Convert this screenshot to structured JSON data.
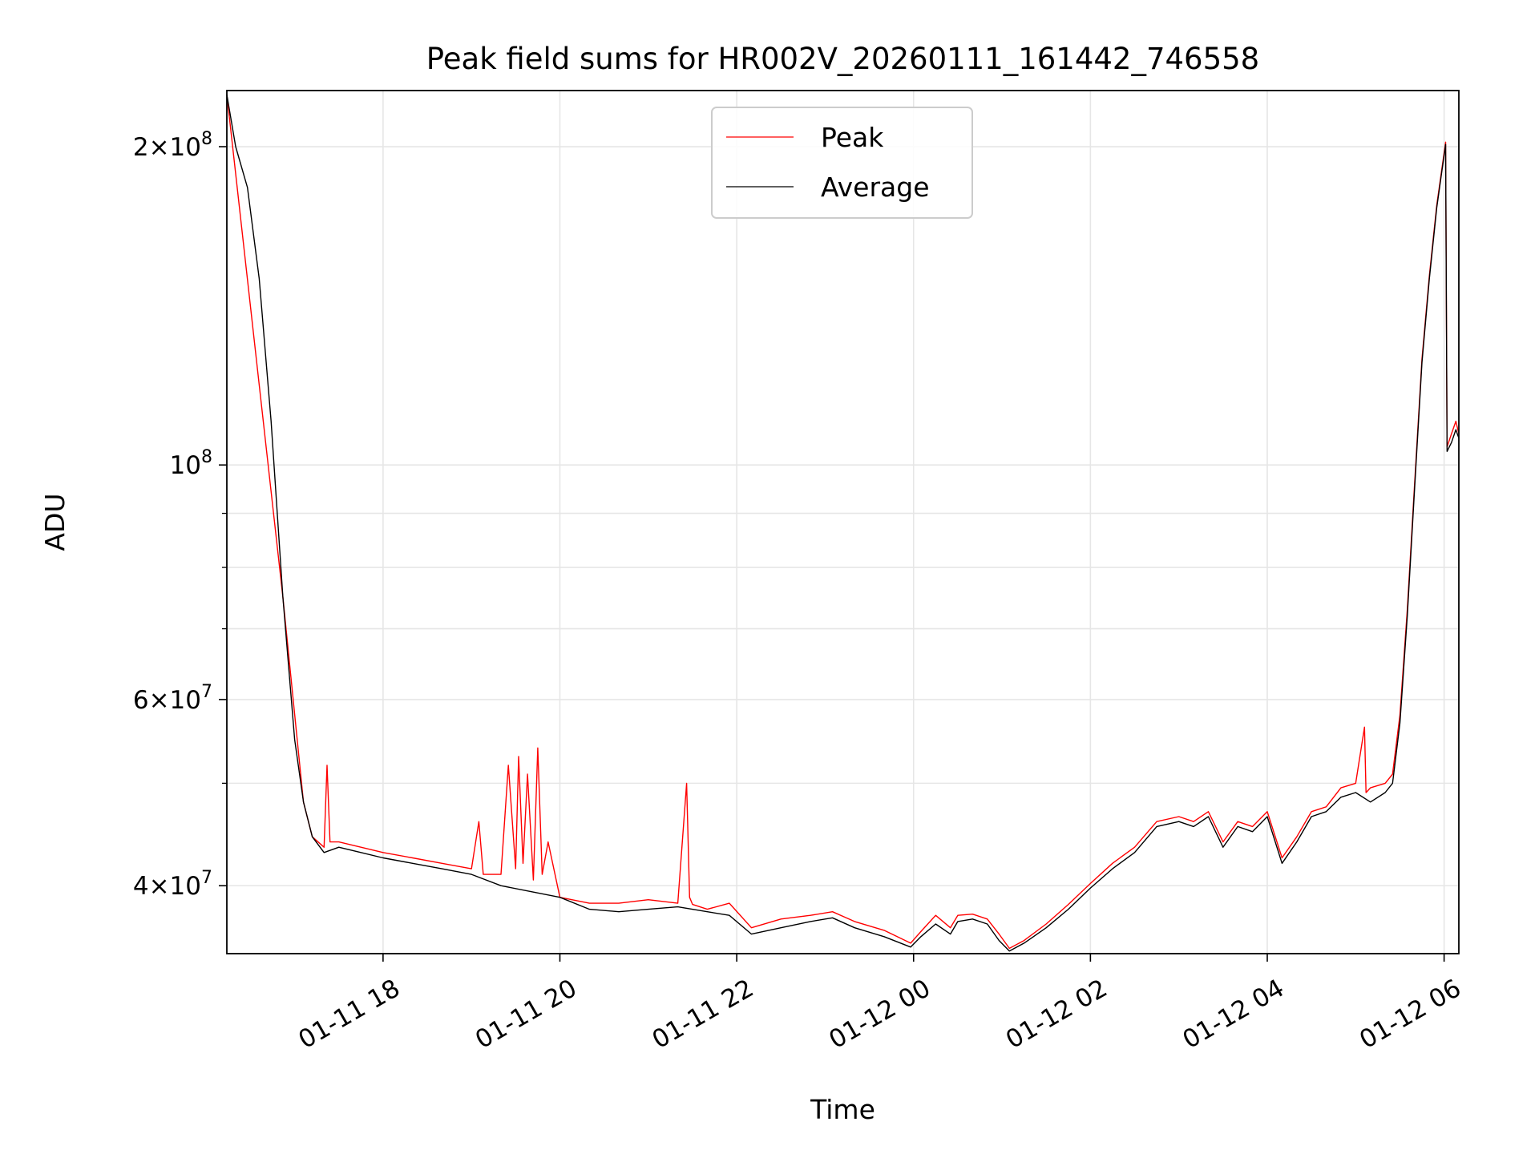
{
  "chart_data": {
    "type": "line",
    "title": "Peak field sums for HR002V_20260111_161442_746558",
    "xlabel": "Time",
    "ylabel": "ADU",
    "y_scale": "log",
    "ylim": [
      34500000,
      226000000
    ],
    "xlim": [
      "2026-01-11 16:14",
      "2026-01-12 06:10"
    ],
    "grid": true,
    "legend": {
      "placement": "top-center",
      "entries": [
        "Peak",
        "Average"
      ]
    },
    "x_ticks": [
      {
        "t": "2026-01-11 18:00",
        "label": "01-11 18"
      },
      {
        "t": "2026-01-11 20:00",
        "label": "01-11 20"
      },
      {
        "t": "2026-01-11 22:00",
        "label": "01-11 22"
      },
      {
        "t": "2026-01-12 00:00",
        "label": "01-12 00"
      },
      {
        "t": "2026-01-12 02:00",
        "label": "01-12 02"
      },
      {
        "t": "2026-01-12 04:00",
        "label": "01-12 04"
      },
      {
        "t": "2026-01-12 06:00",
        "label": "01-12 06"
      }
    ],
    "y_ticks_major": [
      {
        "v": 200000000,
        "base": "2×10",
        "exp": "8"
      },
      {
        "v": 100000000,
        "base": "10",
        "exp": "8"
      },
      {
        "v": 60000000,
        "base": "6×10",
        "exp": "7"
      },
      {
        "v": 40000000,
        "base": "4×10",
        "exp": "7"
      }
    ],
    "y_ticks_minor": [
      90000000,
      80000000,
      70000000,
      50000000
    ],
    "series": [
      {
        "name": "Average",
        "color": "#000000",
        "t": [
          "2026-01-11 16:14",
          "2026-01-11 16:20",
          "2026-01-11 16:28",
          "2026-01-11 16:36",
          "2026-01-11 16:44",
          "2026-01-11 16:52",
          "2026-01-11 17:00",
          "2026-01-11 17:06",
          "2026-01-11 17:12",
          "2026-01-11 17:20",
          "2026-01-11 17:30",
          "2026-01-11 17:45",
          "2026-01-11 18:00",
          "2026-01-11 18:20",
          "2026-01-11 18:40",
          "2026-01-11 19:00",
          "2026-01-11 19:20",
          "2026-01-11 19:40",
          "2026-01-11 20:00",
          "2026-01-11 20:20",
          "2026-01-11 20:40",
          "2026-01-11 21:00",
          "2026-01-11 21:20",
          "2026-01-11 21:40",
          "2026-01-11 21:55",
          "2026-01-11 22:10",
          "2026-01-11 22:30",
          "2026-01-11 22:50",
          "2026-01-11 23:05",
          "2026-01-11 23:20",
          "2026-01-11 23:40",
          "2026-01-11 23:58",
          "2026-01-12 00:05",
          "2026-01-12 00:15",
          "2026-01-12 00:25",
          "2026-01-12 00:30",
          "2026-01-12 00:40",
          "2026-01-12 00:50",
          "2026-01-12 00:58",
          "2026-01-12 01:05",
          "2026-01-12 01:15",
          "2026-01-12 01:30",
          "2026-01-12 01:45",
          "2026-01-12 02:00",
          "2026-01-12 02:15",
          "2026-01-12 02:30",
          "2026-01-12 02:45",
          "2026-01-12 03:00",
          "2026-01-12 03:10",
          "2026-01-12 03:20",
          "2026-01-12 03:30",
          "2026-01-12 03:40",
          "2026-01-12 03:50",
          "2026-01-12 04:00",
          "2026-01-12 04:10",
          "2026-01-12 04:20",
          "2026-01-12 04:30",
          "2026-01-12 04:40",
          "2026-01-12 04:50",
          "2026-01-12 05:00",
          "2026-01-12 05:10",
          "2026-01-12 05:20",
          "2026-01-12 05:25",
          "2026-01-12 05:30",
          "2026-01-12 05:35",
          "2026-01-12 05:40",
          "2026-01-12 05:45",
          "2026-01-12 05:50",
          "2026-01-12 05:55",
          "2026-01-12 06:01",
          "2026-01-12 06:02",
          "2026-01-12 06:05",
          "2026-01-12 06:08",
          "2026-01-12 06:10"
        ],
        "values": [
          224000000,
          200000000,
          183000000,
          150000000,
          110000000,
          75000000,
          55000000,
          48000000,
          44500000,
          43000000,
          43500000,
          43000000,
          42500000,
          42000000,
          41500000,
          41000000,
          40000000,
          39500000,
          39000000,
          38000000,
          37800000,
          38000000,
          38200000,
          37800000,
          37500000,
          36000000,
          36500000,
          37000000,
          37300000,
          36500000,
          35800000,
          35000000,
          35800000,
          36800000,
          36000000,
          37000000,
          37200000,
          36800000,
          35500000,
          34700000,
          35300000,
          36500000,
          38000000,
          39800000,
          41500000,
          43000000,
          45500000,
          46000000,
          45500000,
          46500000,
          43500000,
          45500000,
          45000000,
          46500000,
          42000000,
          44000000,
          46500000,
          47000000,
          48500000,
          49000000,
          48000000,
          49000000,
          50000000,
          57000000,
          72000000,
          95000000,
          125000000,
          150000000,
          175000000,
          201000000,
          103000000,
          105000000,
          108000000,
          106000000
        ]
      },
      {
        "name": "Peak",
        "color": "#ff0000",
        "t": [
          "2026-01-11 16:14",
          "2026-01-11 16:52",
          "2026-01-11 17:06",
          "2026-01-11 17:12",
          "2026-01-11 17:20",
          "2026-01-11 17:22",
          "2026-01-11 17:24",
          "2026-01-11 17:30",
          "2026-01-11 17:45",
          "2026-01-11 18:00",
          "2026-01-11 18:20",
          "2026-01-11 18:40",
          "2026-01-11 19:00",
          "2026-01-11 19:05",
          "2026-01-11 19:08",
          "2026-01-11 19:20",
          "2026-01-11 19:25",
          "2026-01-11 19:30",
          "2026-01-11 19:32",
          "2026-01-11 19:35",
          "2026-01-11 19:38",
          "2026-01-11 19:42",
          "2026-01-11 19:45",
          "2026-01-11 19:48",
          "2026-01-11 19:52",
          "2026-01-11 20:00",
          "2026-01-11 20:20",
          "2026-01-11 20:40",
          "2026-01-11 21:00",
          "2026-01-11 21:20",
          "2026-01-11 21:26",
          "2026-01-11 21:28",
          "2026-01-11 21:30",
          "2026-01-11 21:40",
          "2026-01-11 21:55",
          "2026-01-11 22:10",
          "2026-01-11 22:30",
          "2026-01-11 22:50",
          "2026-01-11 23:05",
          "2026-01-11 23:20",
          "2026-01-11 23:40",
          "2026-01-11 23:58",
          "2026-01-12 00:05",
          "2026-01-12 00:15",
          "2026-01-12 00:25",
          "2026-01-12 00:30",
          "2026-01-12 00:40",
          "2026-01-12 00:50",
          "2026-01-12 00:58",
          "2026-01-12 01:05",
          "2026-01-12 01:15",
          "2026-01-12 01:30",
          "2026-01-12 01:45",
          "2026-01-12 02:00",
          "2026-01-12 02:15",
          "2026-01-12 02:30",
          "2026-01-12 02:45",
          "2026-01-12 03:00",
          "2026-01-12 03:10",
          "2026-01-12 03:20",
          "2026-01-12 03:30",
          "2026-01-12 03:40",
          "2026-01-12 03:50",
          "2026-01-12 04:00",
          "2026-01-12 04:10",
          "2026-01-12 04:20",
          "2026-01-12 04:30",
          "2026-01-12 04:40",
          "2026-01-12 04:50",
          "2026-01-12 05:00",
          "2026-01-12 05:06",
          "2026-01-12 05:07",
          "2026-01-12 05:10",
          "2026-01-12 05:20",
          "2026-01-12 05:25",
          "2026-01-12 05:30",
          "2026-01-12 05:35",
          "2026-01-12 05:40",
          "2026-01-12 05:45",
          "2026-01-12 05:50",
          "2026-01-12 05:55",
          "2026-01-12 06:01",
          "2026-01-12 06:02",
          "2026-01-12 06:05",
          "2026-01-12 06:08",
          "2026-01-12 06:10"
        ],
        "values": [
          224000000,
          75000000,
          48000000,
          44500000,
          43500000,
          52000000,
          44000000,
          44000000,
          43500000,
          43000000,
          42500000,
          42000000,
          41500000,
          46000000,
          41000000,
          41000000,
          52000000,
          41500000,
          53000000,
          42000000,
          51000000,
          40500000,
          54000000,
          41000000,
          44000000,
          39000000,
          38500000,
          38500000,
          38800000,
          38500000,
          50000000,
          39000000,
          38400000,
          38000000,
          38500000,
          36500000,
          37200000,
          37500000,
          37800000,
          37000000,
          36300000,
          35300000,
          36200000,
          37500000,
          36500000,
          37500000,
          37600000,
          37200000,
          36000000,
          34900000,
          35500000,
          36800000,
          38400000,
          40200000,
          42000000,
          43500000,
          46000000,
          46500000,
          46000000,
          47000000,
          44000000,
          46000000,
          45500000,
          47000000,
          42500000,
          44500000,
          47000000,
          47500000,
          49500000,
          50000000,
          56500000,
          49000000,
          49500000,
          50000000,
          51000000,
          58000000,
          73000000,
          96000000,
          126000000,
          151000000,
          176000000,
          202000000,
          104000000,
          107000000,
          110000000,
          107000000
        ]
      }
    ]
  }
}
